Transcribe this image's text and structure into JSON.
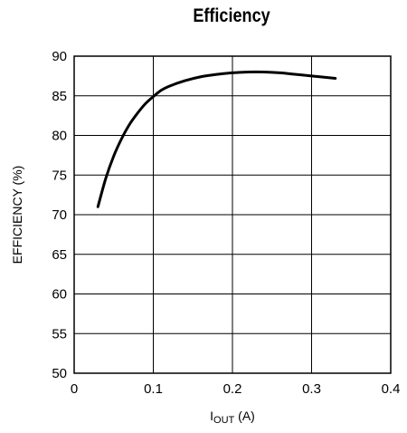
{
  "chart_data": {
    "type": "line",
    "title": "Efficiency",
    "xlabel_main": "I",
    "xlabel_sub": "OUT",
    "xlabel_unit": " (A)",
    "ylabel": "EFFICIENCY (%)",
    "xlim": [
      0,
      0.4
    ],
    "ylim": [
      50,
      90
    ],
    "xticks": [
      "0",
      "0.1",
      "0.2",
      "0.3",
      "0.4"
    ],
    "yticks": [
      "50",
      "55",
      "60",
      "65",
      "70",
      "75",
      "80",
      "85",
      "90"
    ],
    "grid": true,
    "series": [
      {
        "x": [
          0.03,
          0.04,
          0.05,
          0.06,
          0.07,
          0.08,
          0.09,
          0.1,
          0.11,
          0.12,
          0.14,
          0.16,
          0.18,
          0.2,
          0.22,
          0.24,
          0.26,
          0.28,
          0.3,
          0.33
        ],
        "y": [
          71.0,
          74.6,
          77.4,
          79.6,
          81.4,
          82.8,
          84.0,
          84.9,
          85.7,
          86.2,
          86.9,
          87.4,
          87.7,
          87.9,
          88.0,
          88.0,
          87.9,
          87.7,
          87.5,
          87.2
        ]
      }
    ]
  }
}
